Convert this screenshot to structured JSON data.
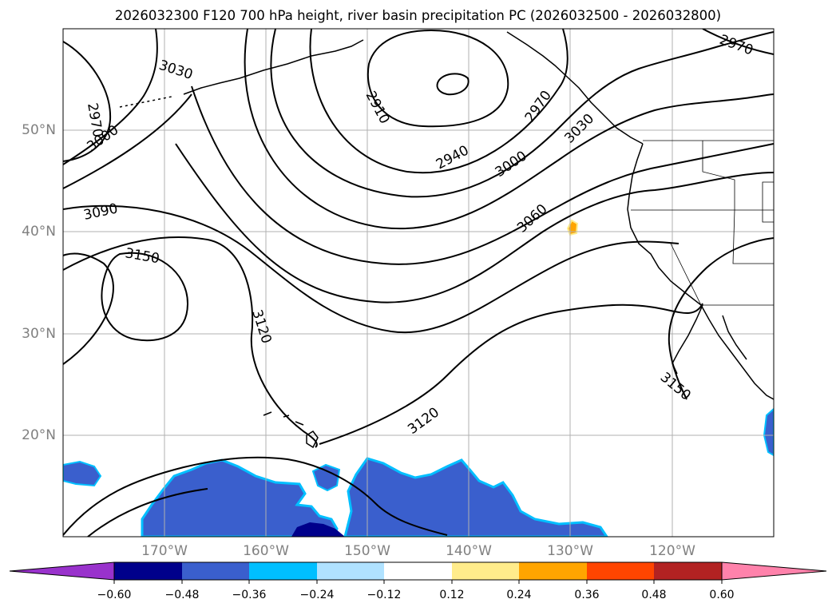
{
  "title": "2026032300 F120 700 hPa height, river basin precipitation PC (2026032500 - 2026032800)",
  "lat_labels": [
    "50°N",
    "40°N",
    "30°N",
    "20°N"
  ],
  "lon_labels": [
    "170°W",
    "160°W",
    "150°W",
    "140°W",
    "130°W",
    "120°W"
  ],
  "contour_labels": [
    "2970",
    "3030",
    "3000",
    "3090",
    "3150",
    "3120",
    "2910",
    "2940",
    "3000",
    "2970",
    "3030",
    "3060",
    "3120",
    "3150",
    "2970"
  ],
  "colorbar": {
    "tick_labels": [
      "−0.60",
      "−0.48",
      "−0.36",
      "−0.24",
      "−0.12",
      "0.12",
      "0.24",
      "0.36",
      "0.48",
      "0.60"
    ],
    "colors": [
      "#9932cc",
      "#00008b",
      "#3a5fcd",
      "#00bfff",
      "#b0e2ff",
      "#ffffff",
      "#ffec8b",
      "#ffa500",
      "#ff4500",
      "#b22222",
      "#ff82ab"
    ]
  }
}
